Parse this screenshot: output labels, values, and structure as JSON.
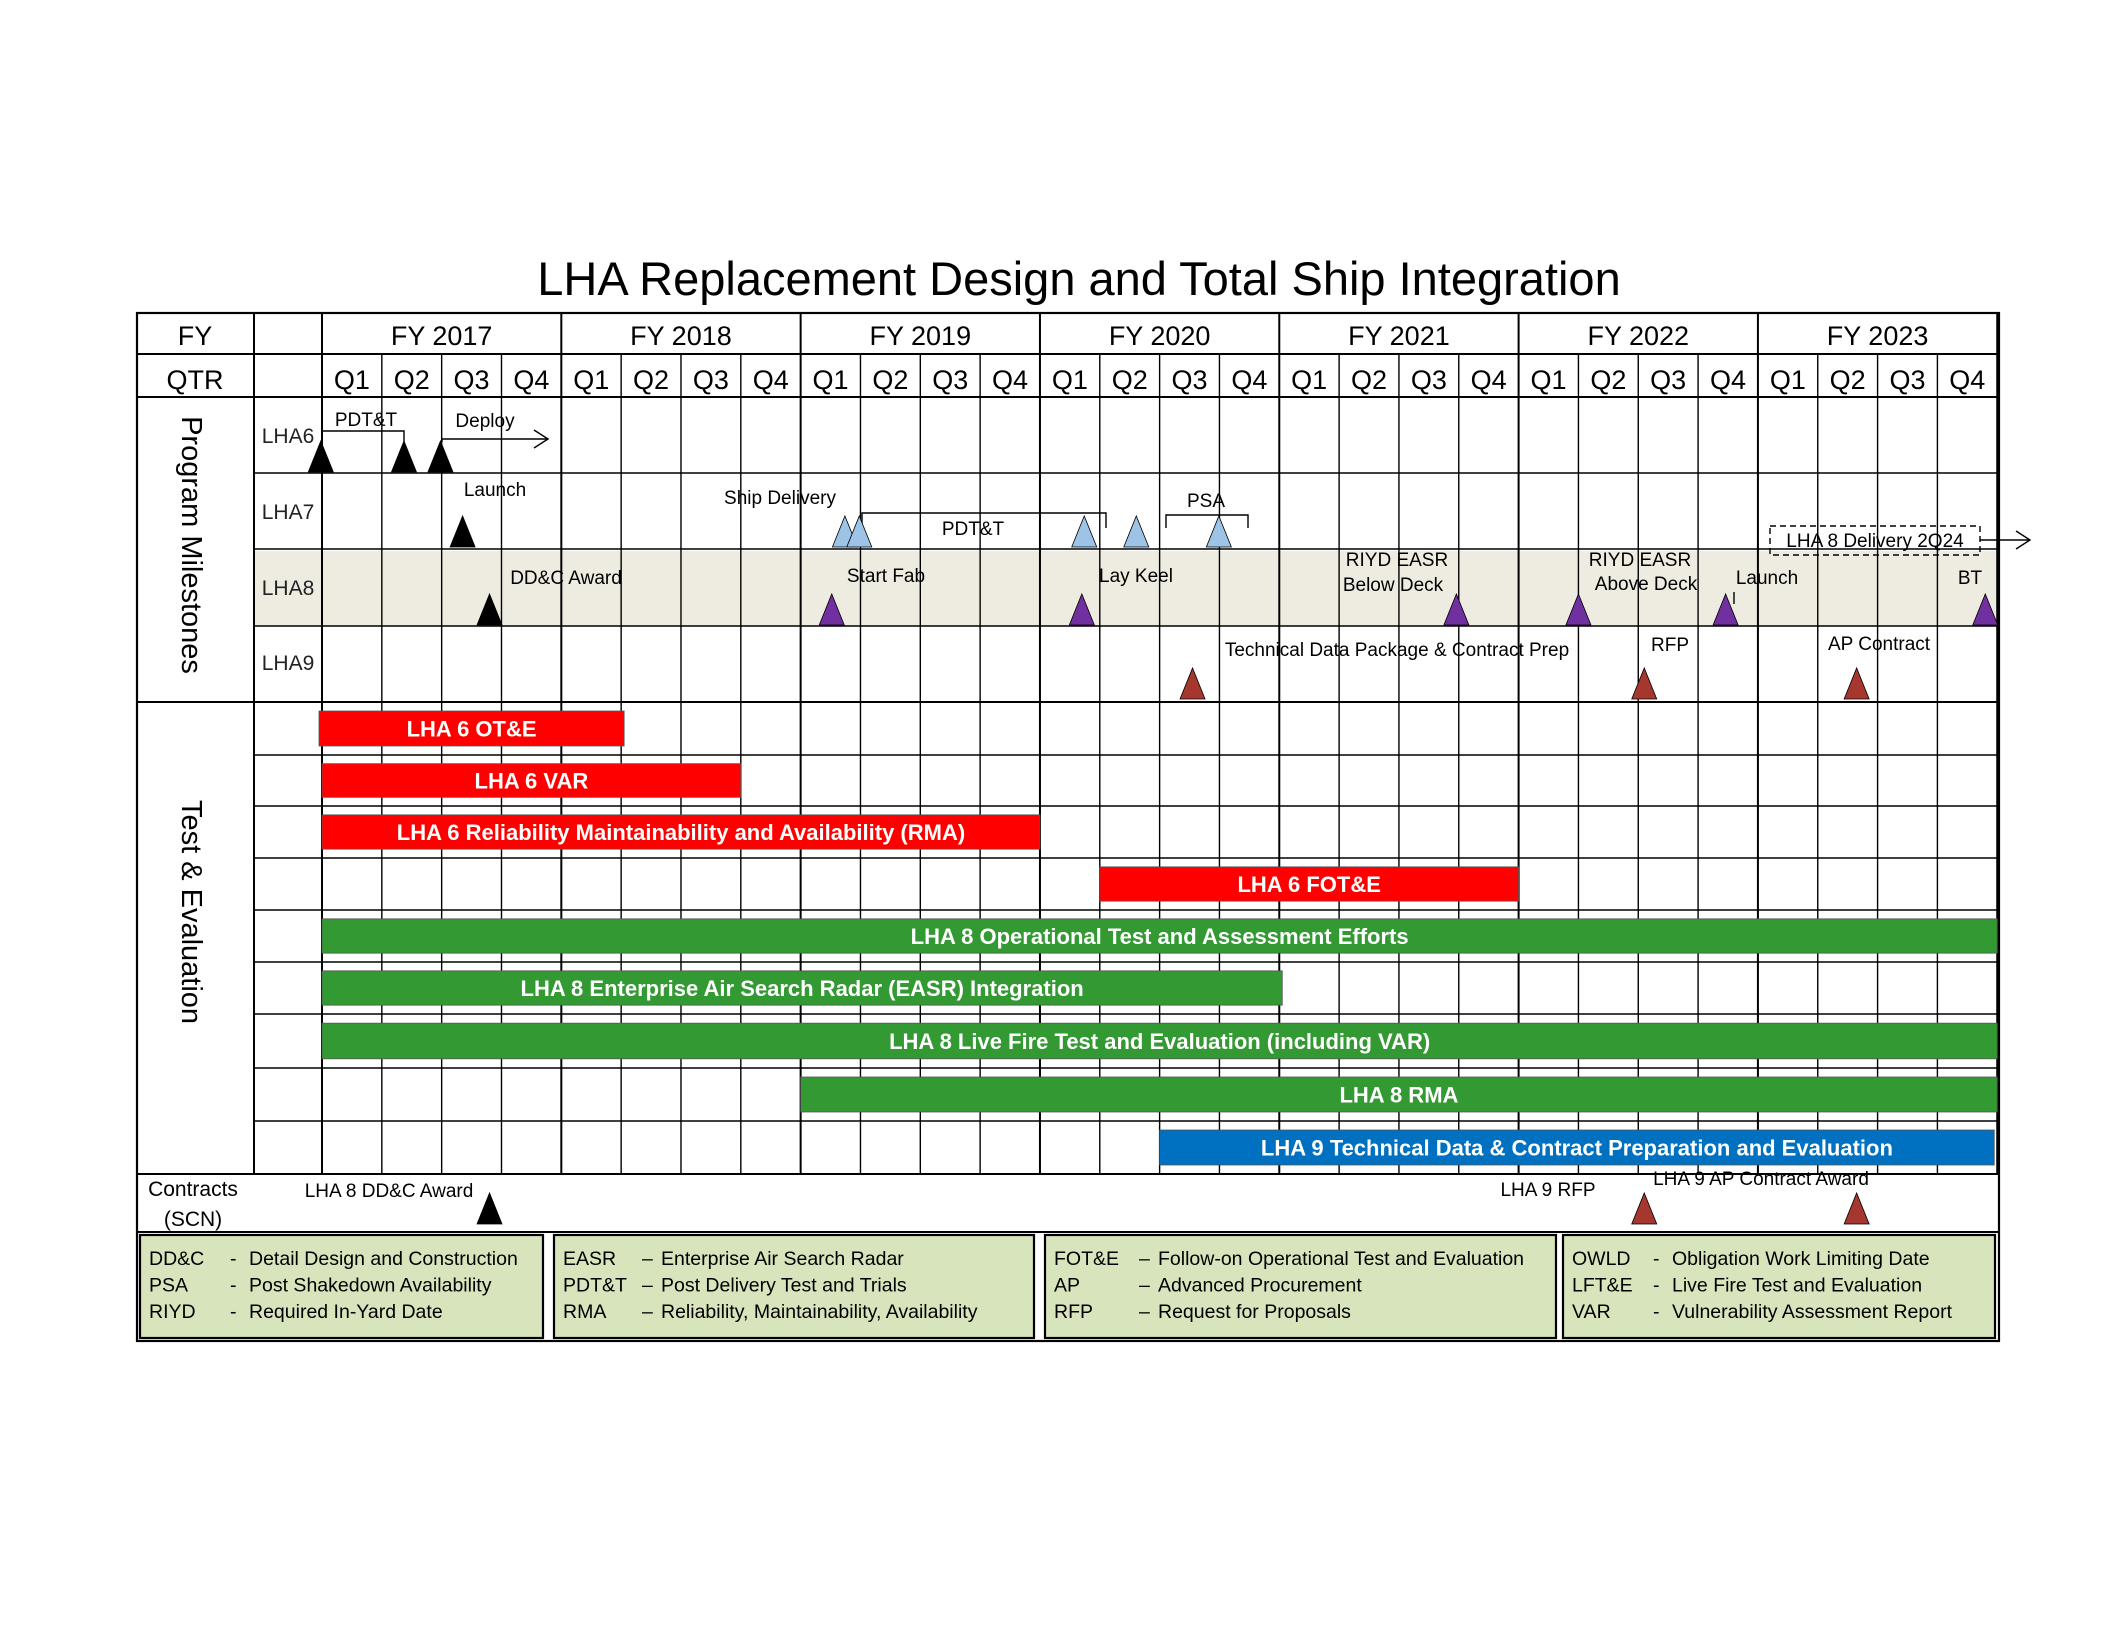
{
  "title": "LHA Replacement Design and Total Ship Integration",
  "header": {
    "fy_label": "FY",
    "qtr_label": "QTR",
    "years": [
      "FY 2017",
      "FY 2018",
      "FY 2019",
      "FY 2020",
      "FY 2021",
      "FY 2022",
      "FY 2023"
    ],
    "quarters": [
      "Q1",
      "Q2",
      "Q3",
      "Q4"
    ]
  },
  "sections": {
    "milestones": "Program Milestones",
    "test_eval": "Test & Evaluation",
    "contracts_line1": "Contracts",
    "contracts_line2": "(SCN)"
  },
  "milestone_rows": [
    "LHA6",
    "LHA7",
    "LHA8",
    "LHA9"
  ],
  "milestone_labels": {
    "lha6_pdtt": "PDT&T",
    "lha6_deploy": "Deploy",
    "lha7_launch": "Launch",
    "lha7_ship_delivery": "Ship Delivery",
    "lha7_pdtt": "PDT&T",
    "lha7_psa": "PSA",
    "lha8_delivery": "LHA 8 Delivery 2Q24",
    "lha8_ddc_award": "DD&C Award",
    "lha8_start_fab": "Start Fab",
    "lha8_lay_keel": "Lay Keel",
    "lha8_riyd_below_1": "RIYD EASR",
    "lha8_riyd_below_2": "Below Deck",
    "lha8_riyd_above_1": "RIYD EASR",
    "lha8_riyd_above_2": "Above Deck",
    "lha8_launch": "Launch",
    "lha8_bt": "BT",
    "lha9_tdp": "Technical Data Package & Contract Prep",
    "lha9_rfp": "RFP",
    "lha9_ap_contract": "AP Contract"
  },
  "te_bars": [
    {
      "label": "LHA 6 OT&E",
      "color": "#ff0000"
    },
    {
      "label": "LHA 6  VAR",
      "color": "#ff0000"
    },
    {
      "label": "LHA 6 Reliability Maintainability and Availability (RMA)",
      "color": "#ff0000"
    },
    {
      "label": "LHA 6 FOT&E",
      "color": "#ff0000"
    },
    {
      "label": "LHA 8 Operational Test and Assessment Efforts",
      "color": "#339933"
    },
    {
      "label": "LHA 8 Enterprise Air Search Radar (EASR) Integration",
      "color": "#339933"
    },
    {
      "label": "LHA 8 Live Fire Test and Evaluation (including VAR)",
      "color": "#339933"
    },
    {
      "label": "LHA 8 RMA",
      "color": "#339933"
    },
    {
      "label": "LHA 9 Technical Data & Contract   Preparation and Evaluation",
      "color": "#0070c0"
    }
  ],
  "contract_labels": {
    "lha8_ddc": "LHA 8 DD&C Award",
    "lha9_rfp": "LHA 9 RFP",
    "lha9_ap": "LHA 9 AP Contract Award"
  },
  "legend": [
    [
      [
        "DD&C",
        "-",
        "Detail Design and Construction"
      ],
      [
        "PSA",
        "-",
        "Post Shakedown Availability"
      ],
      [
        "RIYD",
        "-",
        "Required In-Yard Date"
      ]
    ],
    [
      [
        "EASR",
        "–",
        "Enterprise Air Search Radar"
      ],
      [
        "PDT&T",
        "–",
        "Post Delivery Test and Trials"
      ],
      [
        "RMA",
        "–",
        "Reliability, Maintainability, Availability"
      ]
    ],
    [
      [
        "FOT&E",
        "–",
        "Follow-on Operational Test and Evaluation"
      ],
      [
        "AP",
        "–",
        "Advanced Procurement"
      ],
      [
        "RFP",
        "–",
        "Request for Proposals"
      ]
    ],
    [
      [
        "OWLD",
        "-",
        "Obligation Work Limiting Date"
      ],
      [
        "LFT&E",
        "-",
        "Live Fire Test and Evaluation"
      ],
      [
        "VAR",
        "-",
        "Vulnerability Assessment Report"
      ]
    ]
  ],
  "colors": {
    "black_milestone": "#000000",
    "lha7_milestone": "#9dc3e6",
    "lha8_milestone": "#7030a0",
    "lha9_milestone": "#a5372e",
    "lha8_row_fill": "#eeece1",
    "legend_fill": "#d8e4bc"
  }
}
